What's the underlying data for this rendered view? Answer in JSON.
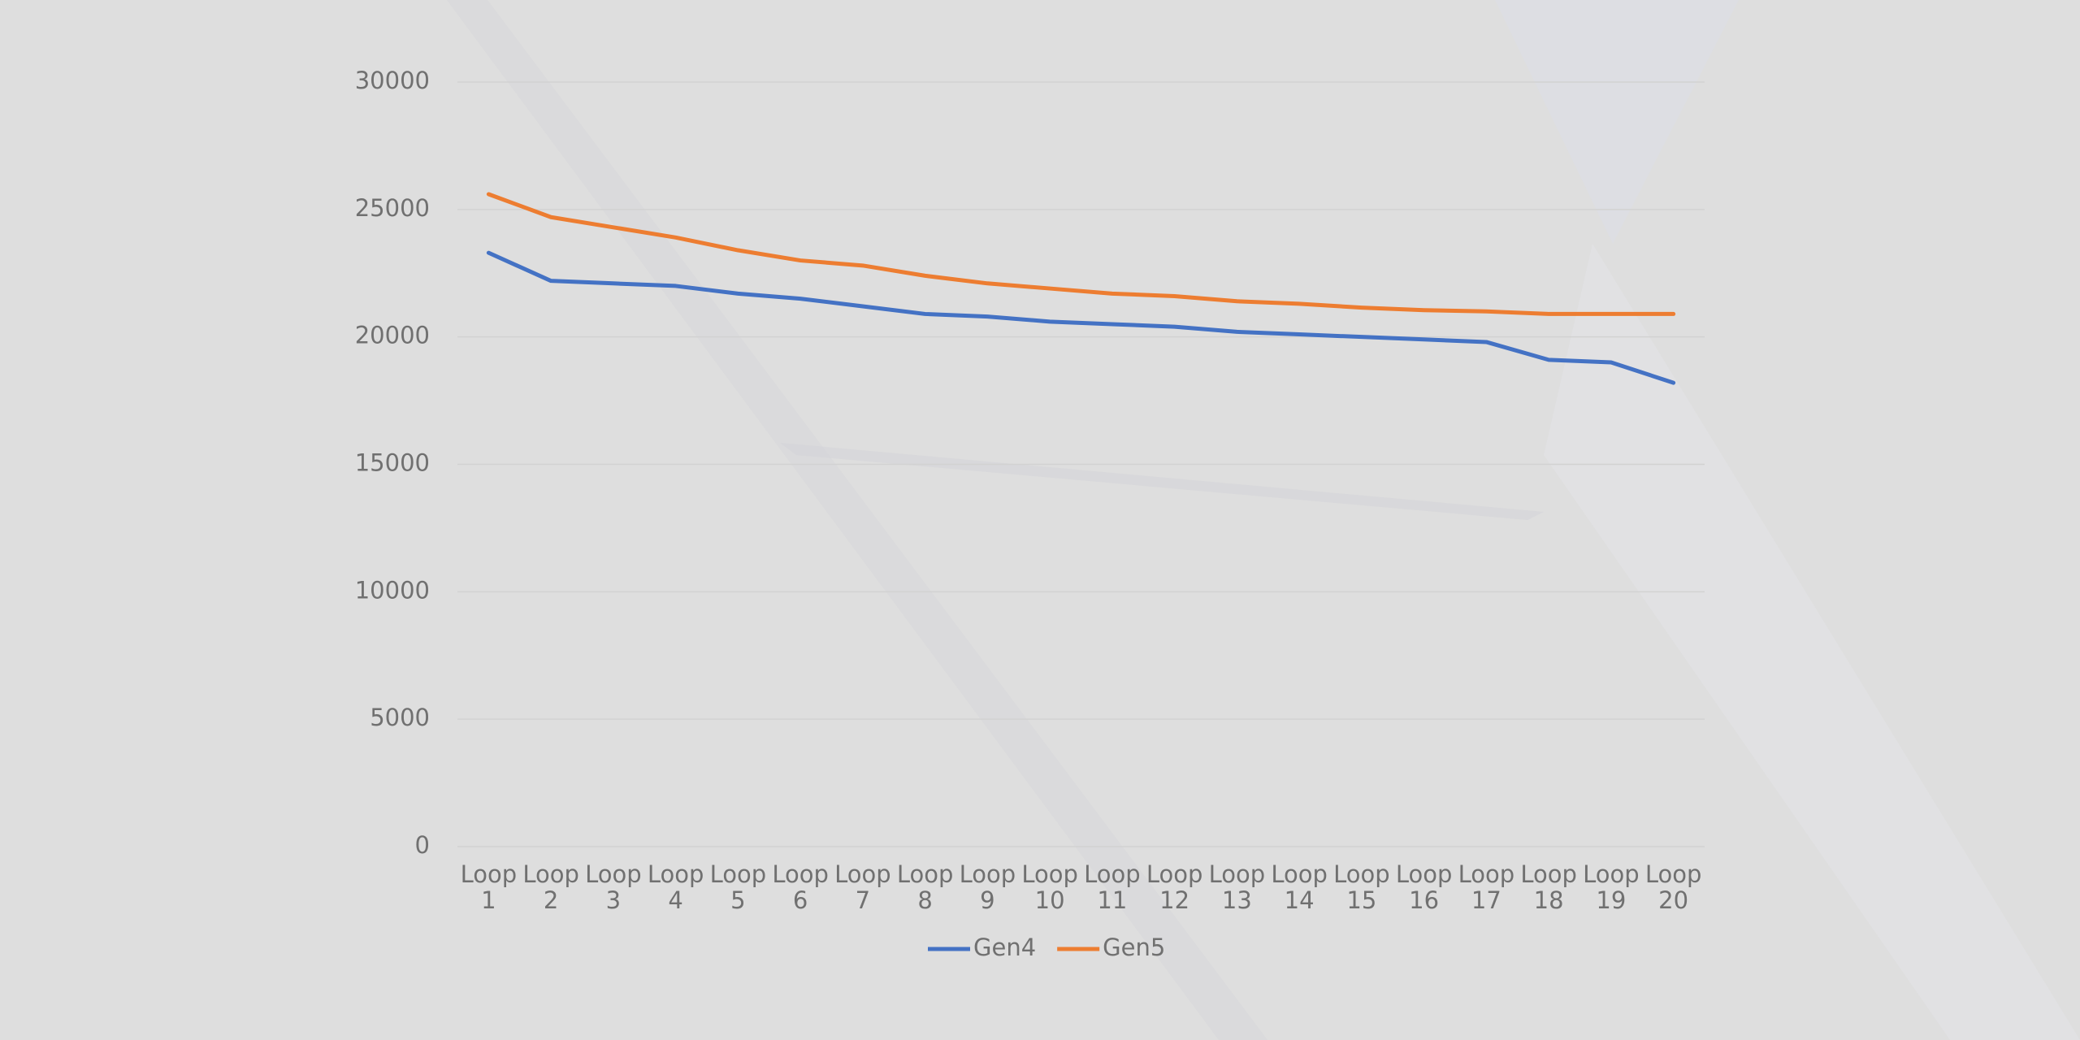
{
  "chart_data": {
    "type": "line",
    "categories": [
      "Loop 1",
      "Loop 2",
      "Loop 3",
      "Loop 4",
      "Loop 5",
      "Loop 6",
      "Loop 7",
      "Loop 8",
      "Loop 9",
      "Loop 10",
      "Loop 11",
      "Loop 12",
      "Loop 13",
      "Loop 14",
      "Loop 15",
      "Loop 16",
      "Loop 17",
      "Loop 18",
      "Loop 19",
      "Loop 20"
    ],
    "series": [
      {
        "name": "Gen4",
        "color": "#4472c4",
        "values": [
          23300,
          22200,
          22100,
          22000,
          21700,
          21500,
          21200,
          20900,
          20800,
          20600,
          20500,
          20400,
          20200,
          20100,
          20000,
          19900,
          19800,
          19100,
          19000,
          18200
        ]
      },
      {
        "name": "Gen5",
        "color": "#ed7d31",
        "values": [
          25600,
          24700,
          24300,
          23900,
          23400,
          23000,
          22800,
          22400,
          22100,
          21900,
          21700,
          21600,
          21400,
          21300,
          21150,
          21050,
          21000,
          20900,
          20900,
          20900
        ]
      }
    ],
    "ylim": [
      0,
      30000
    ],
    "yticks": [
      0,
      5000,
      10000,
      15000,
      20000,
      25000,
      30000
    ],
    "grid": true,
    "legend": "bottom"
  }
}
